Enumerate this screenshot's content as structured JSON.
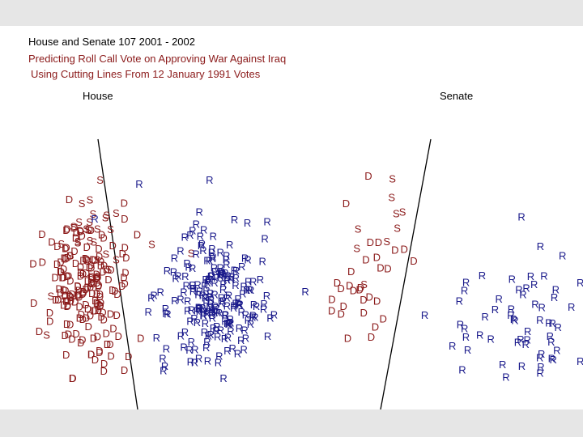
{
  "title_line1": "House and Senate 107  2001 - 2002",
  "title_line2": "Predicting Roll Call Vote on Approving War Against Iraq",
  "title_line3": "Using Cutting Lines From 12 January 1991 Votes",
  "colors": {
    "D": "#8b1a1a",
    "S": "#8b1a1a",
    "R": "#1a1a8b",
    "background": "#ffffff",
    "frame": "#e6e6e6"
  },
  "chart_data": [
    {
      "type": "scatter",
      "title": "House",
      "legend_symbols": [
        "D",
        "S",
        "R"
      ],
      "symbol_groups": [
        {
          "symbol": "S",
          "count": 30
        },
        {
          "symbol": "D",
          "count": 180
        },
        {
          "symbol": "R",
          "count": 215
        }
      ],
      "grid": false
    },
    {
      "type": "scatter",
      "title": "Senate",
      "legend_symbols": [
        "D",
        "S",
        "R"
      ],
      "symbol_groups": [
        {
          "symbol": "S",
          "count": 9
        },
        {
          "symbol": "D",
          "count": 30
        },
        {
          "symbol": "R",
          "count": 58
        }
      ],
      "grid": false
    }
  ]
}
